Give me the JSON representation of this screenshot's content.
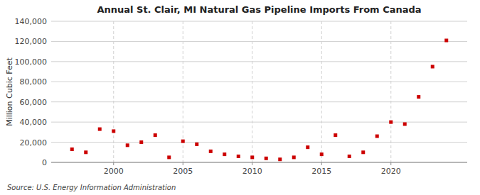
{
  "chart_data": {
    "type": "scatter",
    "title": "Annual St. Clair, MI Natural Gas Pipeline Imports From Canada",
    "ylabel": "Million Cubic Feet",
    "x": [
      1997,
      1998,
      1999,
      2000,
      2001,
      2002,
      2003,
      2004,
      2005,
      2006,
      2007,
      2008,
      2009,
      2010,
      2011,
      2012,
      2013,
      2014,
      2015,
      2016,
      2017,
      2018,
      2019,
      2020,
      2021,
      2022,
      2023,
      2024
    ],
    "values": [
      13000,
      10000,
      33000,
      31000,
      17000,
      20000,
      27000,
      5000,
      21000,
      18000,
      11000,
      8000,
      6000,
      5000,
      4000,
      3000,
      5000,
      15000,
      8000,
      27000,
      6000,
      10000,
      26000,
      40000,
      38000,
      65000,
      95000,
      121000
    ],
    "color": "#cc0000",
    "marker": "square",
    "xlim": [
      1995.5,
      2025.5
    ],
    "ylim": [
      0,
      140000
    ],
    "xticks": [
      2000,
      2005,
      2010,
      2015,
      2020
    ],
    "yticks": [
      0,
      {
        "value": 20000,
        "label": "20,000"
      },
      {
        "value": 40000,
        "label": "40,000"
      },
      {
        "value": 60000,
        "label": "60,000"
      },
      {
        "value": 80000,
        "label": "80,000"
      },
      {
        "value": 100000,
        "label": "100,000"
      },
      {
        "value": 120000,
        "label": "120,000"
      },
      {
        "value": 140000,
        "label": "140,000"
      }
    ],
    "grid": true,
    "annotations": [
      "Source: U.S. Energy Information Administration"
    ]
  }
}
